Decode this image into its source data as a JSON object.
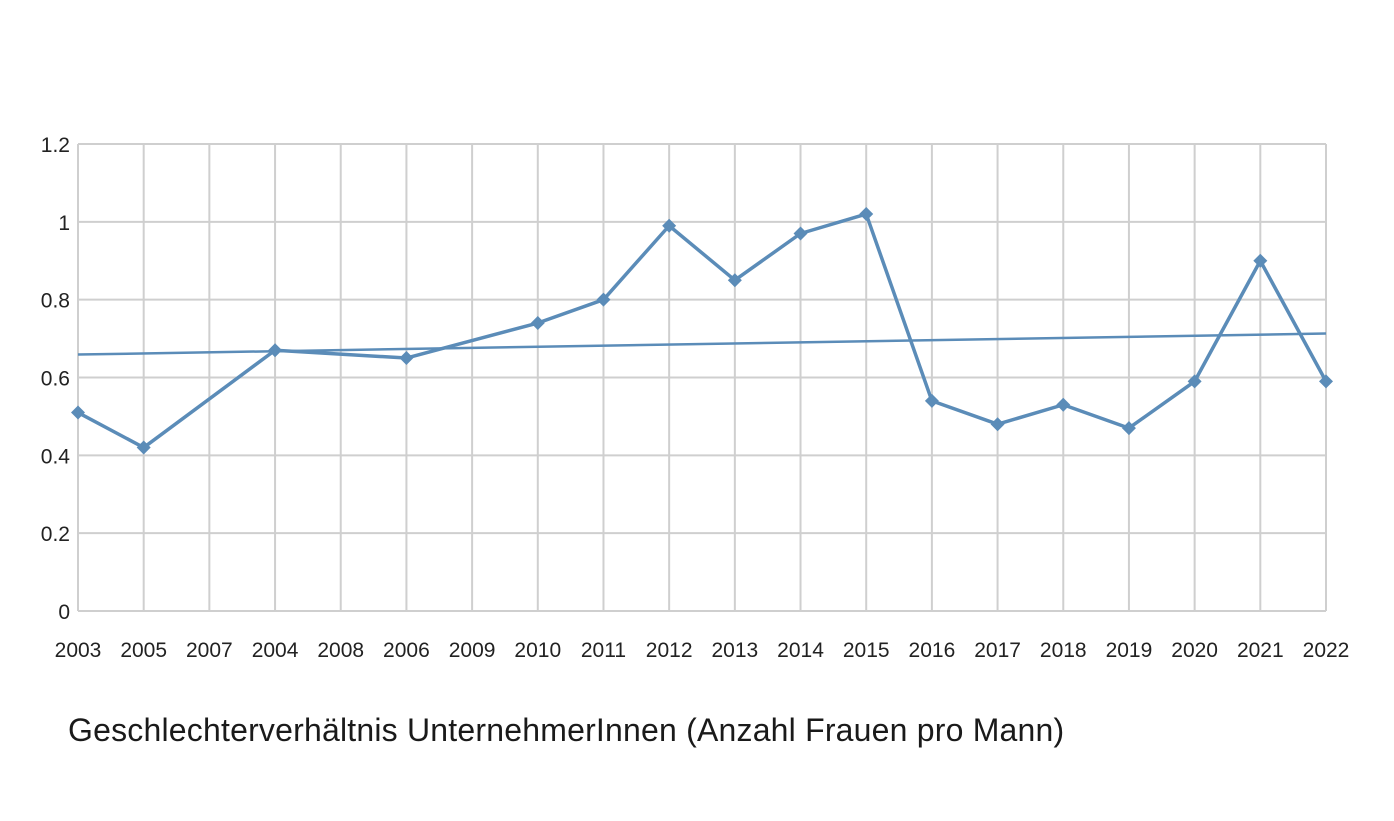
{
  "chart_data": {
    "type": "line",
    "caption": "Geschlechterverhältnis UnternehmerInnen (Anzahl Frauen pro Mann)",
    "categories": [
      "2003",
      "2005",
      "2007",
      "2004",
      "2008",
      "2006",
      "2009",
      "2010",
      "2011",
      "2012",
      "2013",
      "2014",
      "2015",
      "2016",
      "2017",
      "2018",
      "2019",
      "2020",
      "2021",
      "2022"
    ],
    "series": [
      {
        "values": [
          0.51,
          0.42,
          null,
          0.67,
          null,
          0.65,
          null,
          0.74,
          0.8,
          0.99,
          0.85,
          0.97,
          1.02,
          0.54,
          0.48,
          0.53,
          0.47,
          0.59,
          0.9,
          0.59
        ],
        "color": "#5b8cb8",
        "marker": "diamond"
      }
    ],
    "trendline": {
      "type": "linear",
      "start": 0.659,
      "end": 0.713,
      "color": "#5b8cb8"
    },
    "yticks": [
      "0",
      "0.2",
      "0.4",
      "0.6",
      "0.8",
      "1",
      "1.2"
    ],
    "ylim": [
      0,
      1.2
    ],
    "grid": true,
    "legend": "none"
  }
}
